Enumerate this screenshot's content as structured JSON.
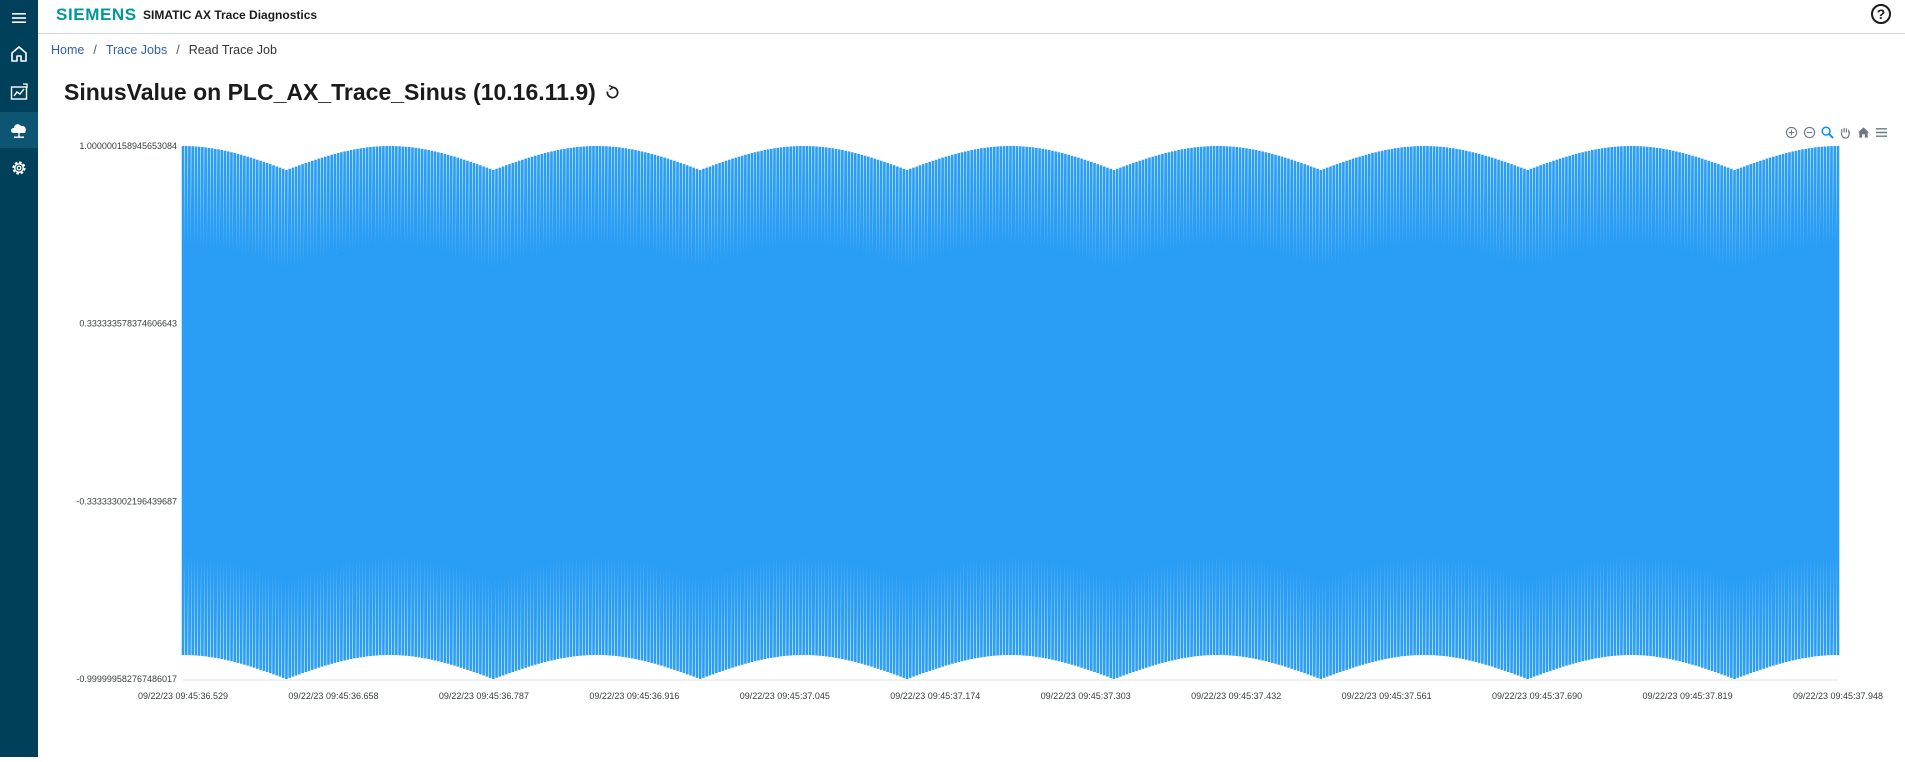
{
  "header": {
    "brand": "SIEMENS",
    "app_title": "SIMATIC AX Trace Diagnostics",
    "help_label": "?"
  },
  "sidebar": {
    "items": [
      {
        "name": "menu",
        "icon": "menu-icon"
      },
      {
        "name": "home",
        "icon": "home-icon"
      },
      {
        "name": "trace-jobs",
        "icon": "chart-icon"
      },
      {
        "name": "cloud-upload",
        "icon": "cloud-icon"
      },
      {
        "name": "settings",
        "icon": "gear-icon"
      }
    ]
  },
  "breadcrumb": {
    "home": "Home",
    "trace_jobs": "Trace Jobs",
    "current": "Read Trace Job",
    "separator": "/"
  },
  "page": {
    "title": "SinusValue on PLC_AX_Trace_Sinus (10.16.11.9)"
  },
  "toolbar": {
    "icons": [
      "zoom-in-icon",
      "zoom-out-icon",
      "selection-zoom-icon",
      "pan-icon",
      "reset-home-icon",
      "menu-icon"
    ]
  },
  "colors": {
    "sidebar": "#00405a",
    "brand": "#009999",
    "series": "#2a9df4",
    "link": "#2f5ea8"
  },
  "chart_data": {
    "type": "line",
    "title": "",
    "series": [
      {
        "name": "SinusValue",
        "description": "high-frequency sine oscillation between +1 and -1, envelope beats with period ~0.157 s",
        "samples_per_beat": 64,
        "beats": 8,
        "max": 1.000000158945653,
        "min": -0.9999995827674866
      }
    ],
    "ylim": [
      -0.999999582767486,
      1.000000158945653
    ],
    "ytick_labels": [
      "1.000000158945653084",
      "0.333333578374606643",
      "-0.333333002196439687",
      "-0.999999582767486017"
    ],
    "ytick_values": [
      1.000000158945653,
      0.33333357837460664,
      -0.3333330021964397,
      -0.999999582767486
    ],
    "xtick_labels": [
      "09/22/23 09:45:36.529",
      "09/22/23 09:45:36.658",
      "09/22/23 09:45:36.787",
      "09/22/23 09:45:36.916",
      "09/22/23 09:45:37.045",
      "09/22/23 09:45:37.174",
      "09/22/23 09:45:37.303",
      "09/22/23 09:45:37.432",
      "09/22/23 09:45:37.561",
      "09/22/23 09:45:37.690",
      "09/22/23 09:45:37.819",
      "09/22/23 09:45:37.948"
    ],
    "xlabel": "",
    "ylabel": ""
  }
}
